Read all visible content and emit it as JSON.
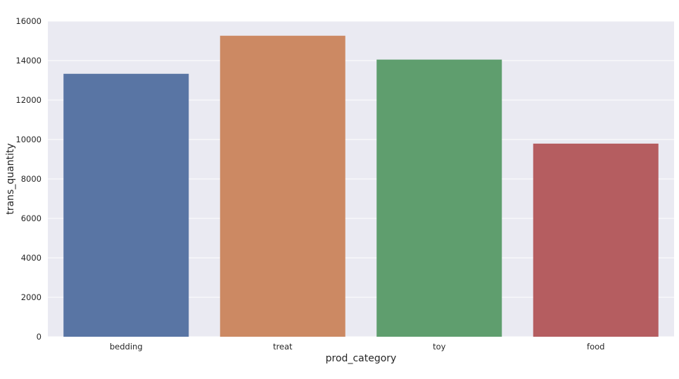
{
  "chart_data": {
    "type": "bar",
    "title": "",
    "xlabel": "prod_category",
    "ylabel": "trans_quantity",
    "categories": [
      "bedding",
      "treat",
      "toy",
      "food"
    ],
    "values": [
      13330,
      15260,
      14050,
      9790
    ],
    "colors": [
      "#5975a4",
      "#cc8963",
      "#5f9e6e",
      "#b55d60"
    ],
    "ylim": [
      0,
      16000
    ],
    "yticks": [
      0,
      2000,
      4000,
      6000,
      8000,
      10000,
      12000,
      14000,
      16000
    ],
    "ytick_labels": [
      "0",
      "2000",
      "4000",
      "6000",
      "8000",
      "10000",
      "12000",
      "14000",
      "16000"
    ],
    "grid": true,
    "background": "#eaeaf2",
    "grid_color": "#ffffff"
  }
}
